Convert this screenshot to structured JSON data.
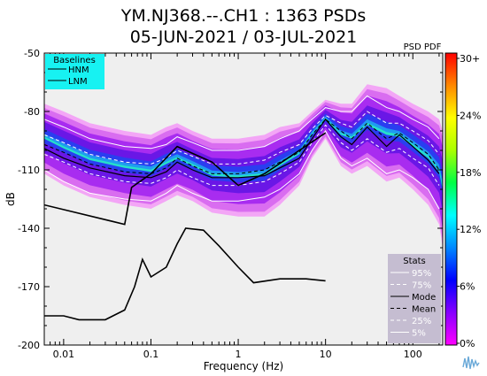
{
  "chart_data": {
    "type": "heatmap",
    "title_line1": "YM.NJ368.--.CH1 : 1363 PSDs",
    "title_line2": "05-JUN-2021 / 03-JUL-2021",
    "xlabel": "Frequency (Hz)",
    "ylabel": "dB",
    "x_scale": "log",
    "xlim": [
      0.006,
      220
    ],
    "ylim": [
      -200,
      -50
    ],
    "x_ticks": [
      {
        "value": 0.01,
        "label": "0.01"
      },
      {
        "value": 0.1,
        "label": "0.1"
      },
      {
        "value": 1,
        "label": "1"
      },
      {
        "value": 10,
        "label": "10"
      },
      {
        "value": 100,
        "label": "100"
      }
    ],
    "y_ticks": [
      {
        "value": -50,
        "label": "-50"
      },
      {
        "value": -80,
        "label": "-80"
      },
      {
        "value": -110,
        "label": "-110"
      },
      {
        "value": -140,
        "label": "-140"
      },
      {
        "value": -170,
        "label": "-170"
      },
      {
        "value": -200,
        "label": "-200"
      }
    ],
    "grid": false,
    "colorbar": {
      "label": "PSD PDF",
      "ticks": [
        "30+",
        "24%",
        "18%",
        "12%",
        "6%",
        "0%"
      ],
      "colors": [
        "#ff00ff",
        "#8800ff",
        "#0000ff",
        "#0088ff",
        "#00ffff",
        "#00ff44",
        "#aaff00",
        "#ffff00",
        "#ff8800",
        "#ff0000"
      ]
    },
    "baselines": {
      "title": "Baselines",
      "entries": [
        "HNM",
        "LNM"
      ],
      "HNM": {
        "x": [
          0.006,
          0.05,
          0.06,
          0.1,
          0.2,
          0.5,
          1,
          2,
          5,
          10
        ],
        "y": [
          -128,
          -138,
          -119,
          -112,
          -98,
          -106,
          -118,
          -112,
          -100,
          -91
        ]
      },
      "LNM": {
        "x": [
          0.006,
          0.01,
          0.015,
          0.03,
          0.05,
          0.065,
          0.08,
          0.1,
          0.15,
          0.2,
          0.25,
          0.4,
          0.6,
          1,
          1.5,
          3,
          6,
          10
        ],
        "y": [
          -185,
          -185,
          -187,
          -187,
          -182,
          -170,
          -156,
          -165,
          -160,
          -148,
          -140,
          -141,
          -149,
          -160,
          -168,
          -166,
          -166,
          -167
        ]
      }
    },
    "stats": {
      "title": "Stats",
      "entries": [
        "95%",
        "75%",
        "Mode",
        "Mean",
        "25%",
        "5%"
      ]
    },
    "mode_curve": {
      "x": [
        0.006,
        0.01,
        0.02,
        0.05,
        0.1,
        0.15,
        0.2,
        0.3,
        0.5,
        1,
        2,
        3,
        5,
        7,
        10,
        15,
        20,
        30,
        50,
        70,
        100,
        150,
        200
      ],
      "y": [
        -99,
        -104,
        -109,
        -113,
        -114,
        -111,
        -106,
        -110,
        -114,
        -114,
        -113,
        -109,
        -104,
        -94,
        -84,
        -93,
        -97,
        -88,
        -98,
        -92,
        -98,
        -105,
        -112
      ]
    },
    "pct95": {
      "x": [
        0.006,
        0.01,
        0.02,
        0.05,
        0.1,
        0.15,
        0.2,
        0.3,
        0.5,
        1,
        2,
        3,
        5,
        7,
        10,
        15,
        20,
        30,
        50,
        70,
        100,
        150,
        200
      ],
      "y": [
        -84,
        -88,
        -94,
        -98,
        -99,
        -97,
        -93,
        -96,
        -100,
        -100,
        -98,
        -94,
        -90,
        -84,
        -78,
        -80,
        -80,
        -72,
        -78,
        -80,
        -84,
        -88,
        -94
      ]
    },
    "pct75": {
      "x": [
        0.006,
        0.01,
        0.02,
        0.05,
        0.1,
        0.15,
        0.2,
        0.3,
        0.5,
        1,
        2,
        3,
        5,
        7,
        10,
        15,
        20,
        30,
        50,
        70,
        100,
        150,
        200
      ],
      "y": [
        -92,
        -96,
        -102,
        -106,
        -107,
        -104,
        -100,
        -103,
        -107,
        -107,
        -105,
        -101,
        -97,
        -89,
        -82,
        -86,
        -88,
        -80,
        -86,
        -86,
        -90,
        -95,
        -102
      ]
    },
    "mean_curve": {
      "x": [
        0.006,
        0.01,
        0.02,
        0.05,
        0.1,
        0.15,
        0.2,
        0.3,
        0.5,
        1,
        2,
        3,
        5,
        7,
        10,
        15,
        20,
        30,
        50,
        70,
        100,
        150,
        200
      ],
      "y": [
        -97,
        -101,
        -107,
        -111,
        -112,
        -109,
        -104,
        -108,
        -112,
        -112,
        -110,
        -106,
        -101,
        -92,
        -84,
        -90,
        -94,
        -86,
        -94,
        -91,
        -96,
        -102,
        -110
      ]
    },
    "pct25": {
      "x": [
        0.006,
        0.01,
        0.02,
        0.05,
        0.1,
        0.15,
        0.2,
        0.3,
        0.5,
        1,
        2,
        3,
        5,
        7,
        10,
        15,
        20,
        30,
        50,
        70,
        100,
        150,
        200
      ],
      "y": [
        -102,
        -106,
        -112,
        -116,
        -117,
        -114,
        -110,
        -114,
        -118,
        -118,
        -116,
        -112,
        -106,
        -96,
        -87,
        -96,
        -100,
        -94,
        -101,
        -99,
        -104,
        -109,
        -118
      ]
    },
    "pct5": {
      "x": [
        0.006,
        0.01,
        0.02,
        0.05,
        0.1,
        0.15,
        0.2,
        0.3,
        0.5,
        1,
        2,
        3,
        5,
        7,
        10,
        15,
        20,
        30,
        50,
        70,
        100,
        150,
        200
      ],
      "y": [
        -110,
        -116,
        -122,
        -125,
        -126,
        -122,
        -118,
        -122,
        -126,
        -126,
        -124,
        -120,
        -112,
        -100,
        -90,
        -104,
        -108,
        -104,
        -112,
        -110,
        -114,
        -120,
        -130
      ]
    },
    "density_outer": {
      "x": [
        0.006,
        0.01,
        0.02,
        0.05,
        0.1,
        0.15,
        0.2,
        0.3,
        0.5,
        1,
        2,
        3,
        5,
        7,
        10,
        15,
        20,
        30,
        50,
        70,
        100,
        150,
        200,
        220
      ],
      "upper": [
        -76,
        -80,
        -86,
        -90,
        -92,
        -88,
        -86,
        -90,
        -94,
        -94,
        -92,
        -88,
        -86,
        -80,
        -74,
        -76,
        -76,
        -66,
        -68,
        -72,
        -76,
        -80,
        -84,
        -90
      ],
      "lower": [
        -112,
        -118,
        -124,
        -128,
        -130,
        -126,
        -123,
        -126,
        -132,
        -134,
        -134,
        -128,
        -118,
        -104,
        -94,
        -108,
        -112,
        -108,
        -116,
        -114,
        -120,
        -128,
        -138,
        -150
      ]
    }
  }
}
